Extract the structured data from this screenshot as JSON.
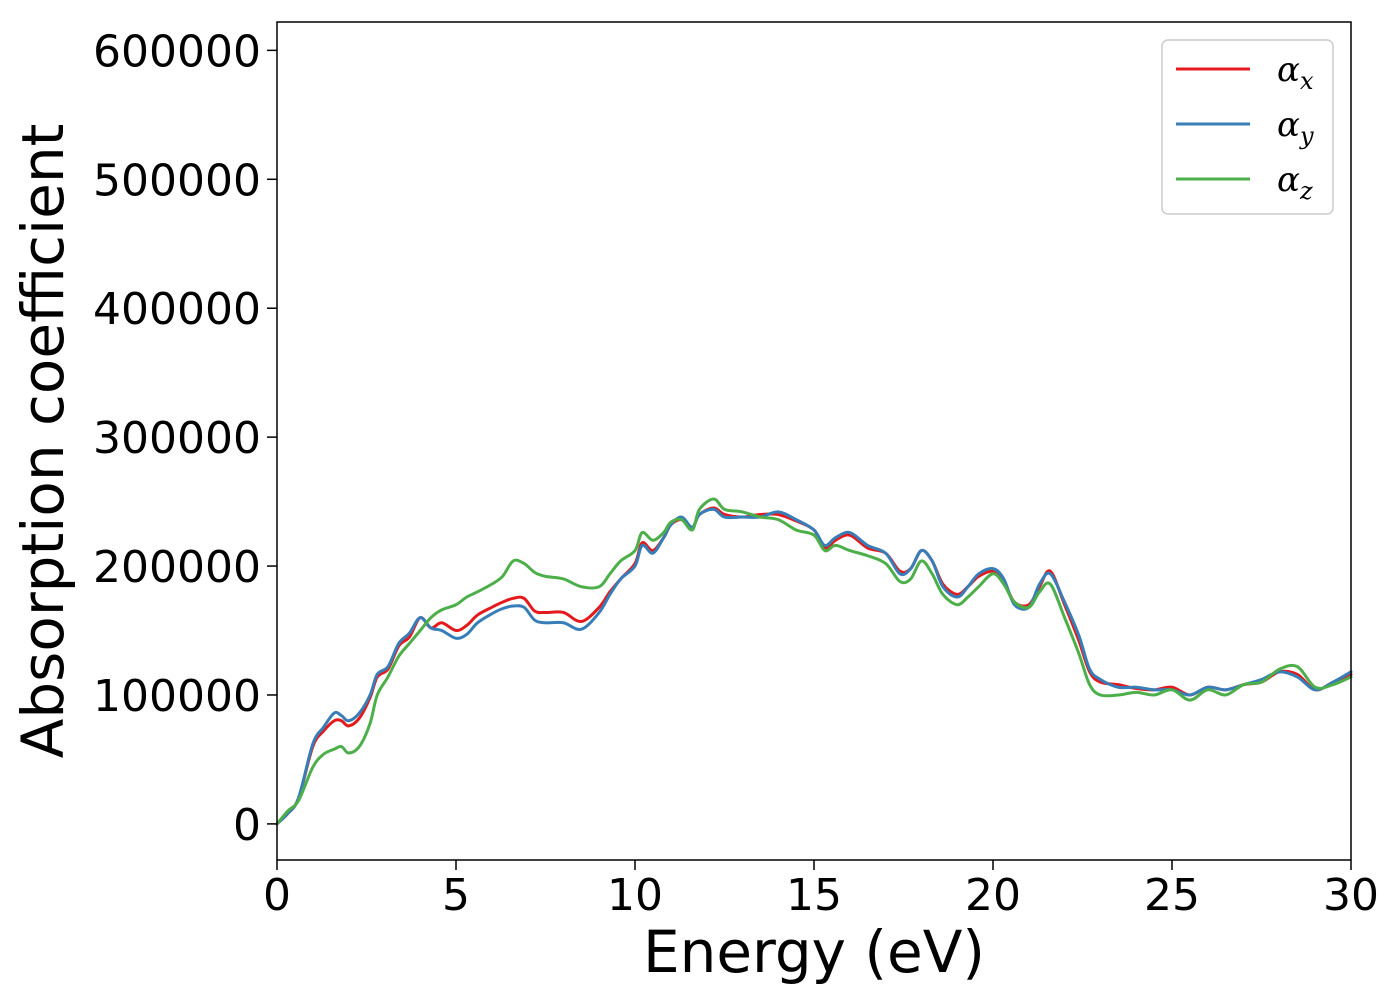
{
  "chart_data": {
    "type": "line",
    "title": "",
    "xlabel": "Energy (eV)",
    "ylabel": "Absorption coefficient",
    "xlim": [
      0,
      30
    ],
    "ylim": [
      -28000,
      622000
    ],
    "xticks": [
      0,
      5,
      10,
      15,
      20,
      25,
      30
    ],
    "xtick_labels": [
      "0",
      "5",
      "10",
      "15",
      "20",
      "25",
      "30"
    ],
    "yticks": [
      0,
      100000,
      200000,
      300000,
      400000,
      500000,
      600000
    ],
    "ytick_labels": [
      "0",
      "100000",
      "200000",
      "300000",
      "400000",
      "500000",
      "600000"
    ],
    "grid": false,
    "legend_position": "top-right",
    "series": [
      {
        "name": "α",
        "subscript": "x",
        "color": "#e41a1c",
        "points": [
          [
            0,
            0
          ],
          [
            0.3,
            8000
          ],
          [
            0.6,
            20000
          ],
          [
            1,
            60000
          ],
          [
            1.3,
            72000
          ],
          [
            1.6,
            80000
          ],
          [
            1.8,
            80000
          ],
          [
            2,
            76000
          ],
          [
            2.3,
            82000
          ],
          [
            2.6,
            98000
          ],
          [
            2.8,
            114000
          ],
          [
            3.1,
            120000
          ],
          [
            3.4,
            138000
          ],
          [
            3.7,
            145000
          ],
          [
            4,
            160000
          ],
          [
            4.3,
            152000
          ],
          [
            4.6,
            156000
          ],
          [
            5,
            150000
          ],
          [
            5.3,
            154000
          ],
          [
            5.6,
            162000
          ],
          [
            6,
            168000
          ],
          [
            6.3,
            172000
          ],
          [
            6.6,
            175000
          ],
          [
            6.9,
            175000
          ],
          [
            7.2,
            165000
          ],
          [
            7.5,
            164000
          ],
          [
            8,
            164000
          ],
          [
            8.5,
            157000
          ],
          [
            9,
            168000
          ],
          [
            9.3,
            180000
          ],
          [
            9.6,
            190000
          ],
          [
            10,
            202000
          ],
          [
            10.2,
            218000
          ],
          [
            10.5,
            212000
          ],
          [
            10.8,
            222000
          ],
          [
            11,
            232000
          ],
          [
            11.3,
            236000
          ],
          [
            11.6,
            230000
          ],
          [
            11.8,
            240000
          ],
          [
            12.2,
            245000
          ],
          [
            12.5,
            240000
          ],
          [
            13,
            238000
          ],
          [
            13.5,
            240000
          ],
          [
            14,
            240000
          ],
          [
            14.5,
            235000
          ],
          [
            15,
            228000
          ],
          [
            15.3,
            214000
          ],
          [
            15.6,
            220000
          ],
          [
            16,
            224000
          ],
          [
            16.5,
            214000
          ],
          [
            17,
            210000
          ],
          [
            17.4,
            196000
          ],
          [
            17.7,
            198000
          ],
          [
            18,
            212000
          ],
          [
            18.3,
            204000
          ],
          [
            18.6,
            186000
          ],
          [
            19,
            178000
          ],
          [
            19.3,
            184000
          ],
          [
            19.6,
            192000
          ],
          [
            20,
            196000
          ],
          [
            20.3,
            188000
          ],
          [
            20.6,
            172000
          ],
          [
            21,
            170000
          ],
          [
            21.3,
            184000
          ],
          [
            21.6,
            196000
          ],
          [
            22,
            170000
          ],
          [
            22.4,
            142000
          ],
          [
            22.7,
            118000
          ],
          [
            23,
            110000
          ],
          [
            23.5,
            108000
          ],
          [
            24,
            105000
          ],
          [
            24.5,
            104000
          ],
          [
            25,
            106000
          ],
          [
            25.5,
            100000
          ],
          [
            26,
            106000
          ],
          [
            26.5,
            104000
          ],
          [
            27,
            108000
          ],
          [
            27.5,
            110000
          ],
          [
            28,
            118000
          ],
          [
            28.5,
            116000
          ],
          [
            29,
            104000
          ],
          [
            29.5,
            110000
          ],
          [
            30,
            116000
          ]
        ]
      },
      {
        "name": "α",
        "subscript": "y",
        "color": "#377eb8",
        "points": [
          [
            0,
            0
          ],
          [
            0.3,
            8000
          ],
          [
            0.6,
            20000
          ],
          [
            1,
            62000
          ],
          [
            1.3,
            75000
          ],
          [
            1.6,
            86000
          ],
          [
            1.8,
            84000
          ],
          [
            2,
            80000
          ],
          [
            2.3,
            86000
          ],
          [
            2.6,
            100000
          ],
          [
            2.8,
            116000
          ],
          [
            3.1,
            122000
          ],
          [
            3.4,
            140000
          ],
          [
            3.7,
            148000
          ],
          [
            4,
            160000
          ],
          [
            4.3,
            152000
          ],
          [
            4.6,
            150000
          ],
          [
            5,
            144000
          ],
          [
            5.3,
            147000
          ],
          [
            5.6,
            156000
          ],
          [
            6,
            163000
          ],
          [
            6.3,
            167000
          ],
          [
            6.6,
            169000
          ],
          [
            6.9,
            168000
          ],
          [
            7.2,
            158000
          ],
          [
            7.5,
            156000
          ],
          [
            8,
            156000
          ],
          [
            8.5,
            151000
          ],
          [
            9,
            164000
          ],
          [
            9.3,
            178000
          ],
          [
            9.6,
            190000
          ],
          [
            10,
            200000
          ],
          [
            10.2,
            216000
          ],
          [
            10.5,
            210000
          ],
          [
            10.8,
            222000
          ],
          [
            11,
            232000
          ],
          [
            11.3,
            238000
          ],
          [
            11.6,
            230000
          ],
          [
            11.8,
            240000
          ],
          [
            12.2,
            244000
          ],
          [
            12.5,
            238000
          ],
          [
            13,
            238000
          ],
          [
            13.5,
            238000
          ],
          [
            14,
            242000
          ],
          [
            14.5,
            236000
          ],
          [
            15,
            228000
          ],
          [
            15.3,
            216000
          ],
          [
            15.6,
            222000
          ],
          [
            16,
            226000
          ],
          [
            16.5,
            216000
          ],
          [
            17,
            210000
          ],
          [
            17.4,
            194000
          ],
          [
            17.7,
            198000
          ],
          [
            18,
            212000
          ],
          [
            18.3,
            204000
          ],
          [
            18.6,
            184000
          ],
          [
            19,
            176000
          ],
          [
            19.3,
            184000
          ],
          [
            19.6,
            194000
          ],
          [
            20,
            198000
          ],
          [
            20.3,
            190000
          ],
          [
            20.6,
            170000
          ],
          [
            21,
            168000
          ],
          [
            21.3,
            186000
          ],
          [
            21.6,
            194000
          ],
          [
            22,
            172000
          ],
          [
            22.4,
            146000
          ],
          [
            22.7,
            120000
          ],
          [
            23,
            112000
          ],
          [
            23.5,
            106000
          ],
          [
            24,
            106000
          ],
          [
            24.5,
            104000
          ],
          [
            25,
            104000
          ],
          [
            25.5,
            100000
          ],
          [
            26,
            106000
          ],
          [
            26.5,
            104000
          ],
          [
            27,
            108000
          ],
          [
            27.5,
            112000
          ],
          [
            28,
            118000
          ],
          [
            28.5,
            114000
          ],
          [
            29,
            104000
          ],
          [
            29.5,
            110000
          ],
          [
            30,
            118000
          ]
        ]
      },
      {
        "name": "α",
        "subscript": "z",
        "color": "#4daf4a",
        "points": [
          [
            0,
            0
          ],
          [
            0.3,
            10000
          ],
          [
            0.6,
            18000
          ],
          [
            1,
            44000
          ],
          [
            1.3,
            54000
          ],
          [
            1.6,
            58000
          ],
          [
            1.8,
            60000
          ],
          [
            2,
            55000
          ],
          [
            2.3,
            60000
          ],
          [
            2.6,
            78000
          ],
          [
            2.8,
            100000
          ],
          [
            3.1,
            114000
          ],
          [
            3.4,
            130000
          ],
          [
            3.7,
            140000
          ],
          [
            4,
            150000
          ],
          [
            4.3,
            160000
          ],
          [
            4.6,
            166000
          ],
          [
            5,
            170000
          ],
          [
            5.3,
            176000
          ],
          [
            5.6,
            180000
          ],
          [
            6,
            186000
          ],
          [
            6.3,
            192000
          ],
          [
            6.6,
            204000
          ],
          [
            6.9,
            202000
          ],
          [
            7.2,
            195000
          ],
          [
            7.5,
            192000
          ],
          [
            8,
            190000
          ],
          [
            8.5,
            184000
          ],
          [
            9,
            184000
          ],
          [
            9.3,
            194000
          ],
          [
            9.6,
            204000
          ],
          [
            10,
            212000
          ],
          [
            10.2,
            226000
          ],
          [
            10.5,
            220000
          ],
          [
            10.8,
            226000
          ],
          [
            11,
            234000
          ],
          [
            11.3,
            236000
          ],
          [
            11.6,
            228000
          ],
          [
            11.8,
            244000
          ],
          [
            12.2,
            252000
          ],
          [
            12.5,
            244000
          ],
          [
            13,
            242000
          ],
          [
            13.5,
            238000
          ],
          [
            14,
            236000
          ],
          [
            14.5,
            228000
          ],
          [
            15,
            224000
          ],
          [
            15.3,
            212000
          ],
          [
            15.6,
            216000
          ],
          [
            16,
            212000
          ],
          [
            16.5,
            208000
          ],
          [
            17,
            202000
          ],
          [
            17.4,
            188000
          ],
          [
            17.7,
            190000
          ],
          [
            18,
            204000
          ],
          [
            18.3,
            194000
          ],
          [
            18.6,
            178000
          ],
          [
            19,
            170000
          ],
          [
            19.3,
            176000
          ],
          [
            19.6,
            184000
          ],
          [
            20,
            194000
          ],
          [
            20.3,
            186000
          ],
          [
            20.6,
            172000
          ],
          [
            21,
            168000
          ],
          [
            21.3,
            180000
          ],
          [
            21.6,
            186000
          ],
          [
            22,
            160000
          ],
          [
            22.4,
            132000
          ],
          [
            22.7,
            108000
          ],
          [
            23,
            100000
          ],
          [
            23.5,
            100000
          ],
          [
            24,
            102000
          ],
          [
            24.5,
            100000
          ],
          [
            25,
            104000
          ],
          [
            25.5,
            96000
          ],
          [
            26,
            104000
          ],
          [
            26.5,
            100000
          ],
          [
            27,
            108000
          ],
          [
            27.5,
            110000
          ],
          [
            28,
            120000
          ],
          [
            28.5,
            122000
          ],
          [
            29,
            106000
          ],
          [
            29.5,
            108000
          ],
          [
            30,
            114000
          ]
        ]
      }
    ]
  }
}
